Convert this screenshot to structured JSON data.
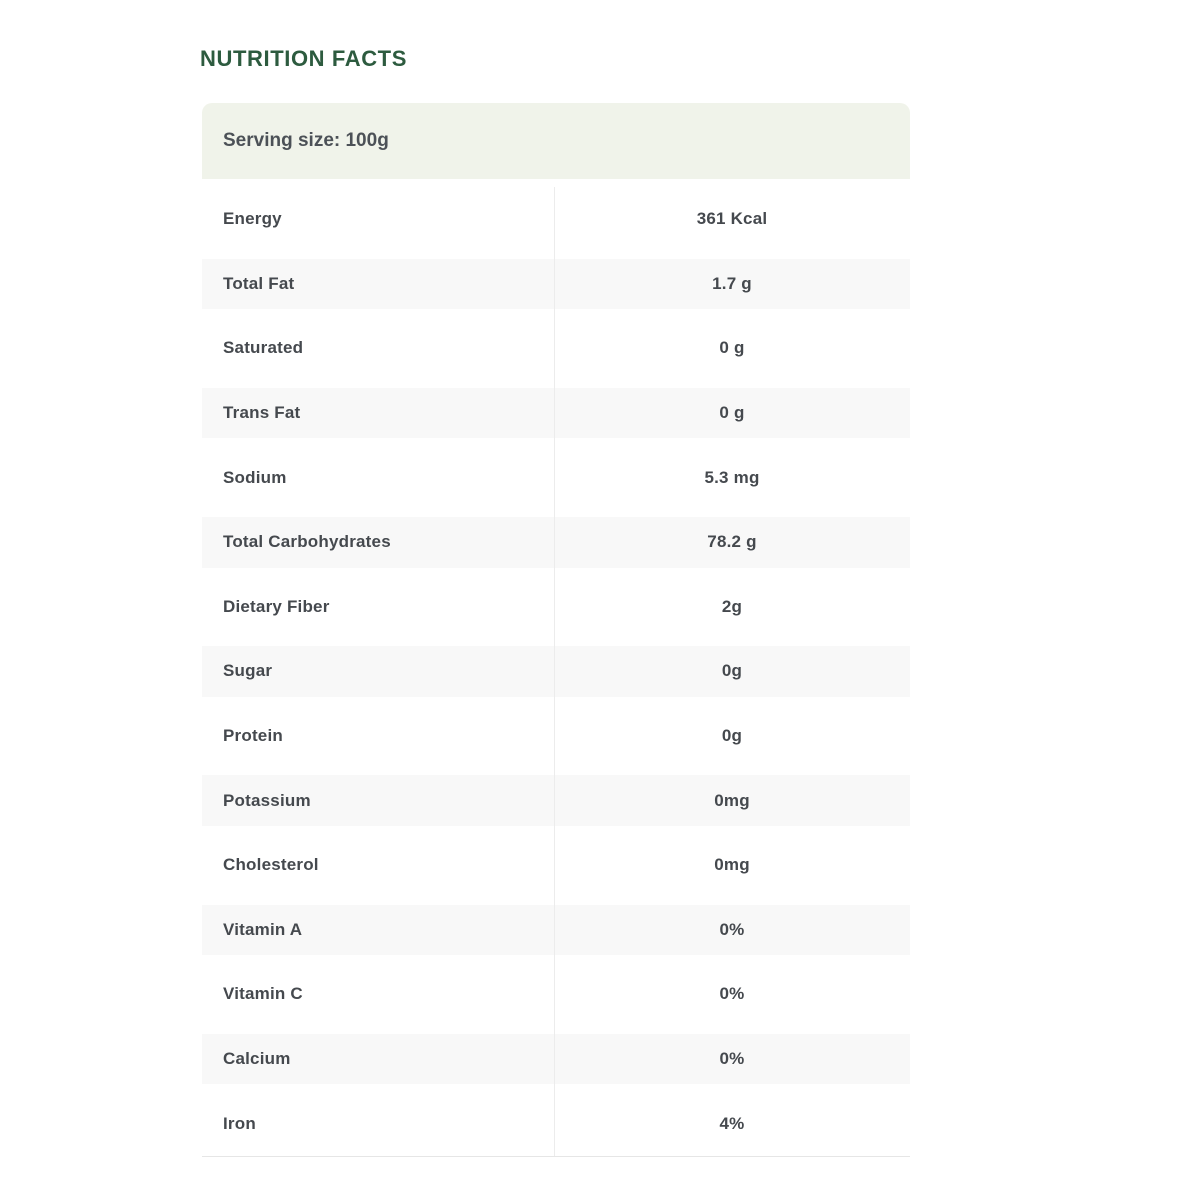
{
  "page": {
    "title": "NUTRITION FACTS",
    "background_color": "#ffffff",
    "title_color": "#2d5b3f"
  },
  "nutrition_table": {
    "serving_header": "Serving size: 100g",
    "header_background": "#f0f3ea",
    "stripe_color": "#f8f8f8",
    "text_color": "#45494e",
    "divider_color": "#ececec",
    "rows": [
      {
        "label": "Energy",
        "value": "361 Kcal"
      },
      {
        "label": "Total Fat",
        "value": "1.7 g"
      },
      {
        "label": "Saturated",
        "value": "0 g"
      },
      {
        "label": "Trans Fat",
        "value": "0 g"
      },
      {
        "label": "Sodium",
        "value": "5.3 mg"
      },
      {
        "label": "Total Carbohydrates",
        "value": "78.2 g"
      },
      {
        "label": "Dietary Fiber",
        "value": "2g"
      },
      {
        "label": "Sugar",
        "value": "0g"
      },
      {
        "label": "Protein",
        "value": "0g"
      },
      {
        "label": "Potassium",
        "value": "0mg"
      },
      {
        "label": "Cholesterol",
        "value": "0mg"
      },
      {
        "label": "Vitamin A",
        "value": "0%"
      },
      {
        "label": "Vitamin C",
        "value": "0%"
      },
      {
        "label": "Calcium",
        "value": "0%"
      },
      {
        "label": "Iron",
        "value": "4%"
      }
    ]
  }
}
